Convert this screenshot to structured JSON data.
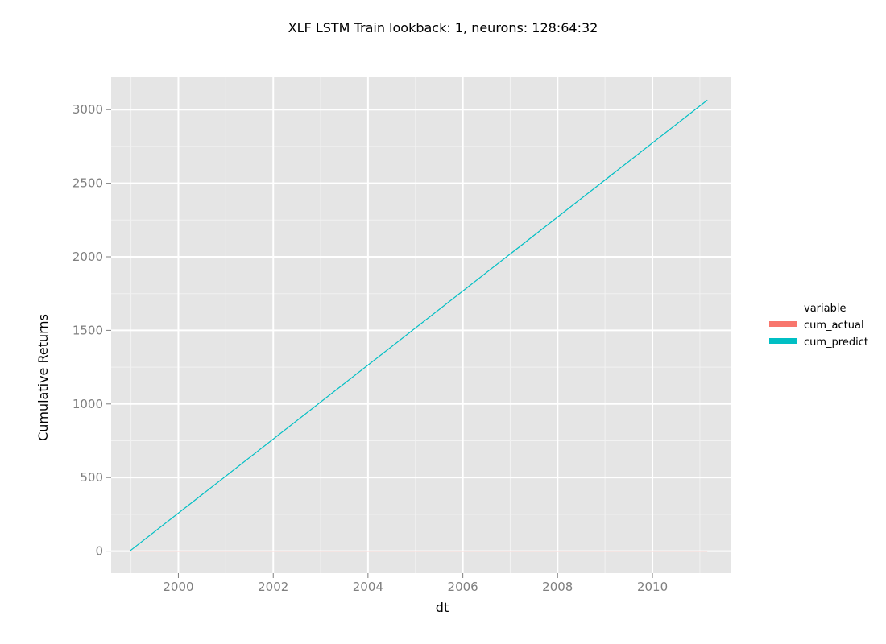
{
  "chart_data": {
    "type": "line",
    "title": "XLF LSTM Train lookback: 1, neurons: 128:64:32",
    "xlabel": "dt",
    "ylabel": "Cumulative Returns",
    "x_type": "date",
    "xlim": [
      "1998-08-01",
      "2011-09-01"
    ],
    "ylim": [
      -150,
      3220
    ],
    "x_ticks": [
      {
        "value": "2000-01-01",
        "label": "2000"
      },
      {
        "value": "2002-01-01",
        "label": "2002"
      },
      {
        "value": "2004-01-01",
        "label": "2004"
      },
      {
        "value": "2006-01-01",
        "label": "2006"
      },
      {
        "value": "2008-01-01",
        "label": "2008"
      },
      {
        "value": "2010-01-01",
        "label": "2010"
      }
    ],
    "y_ticks": [
      0,
      500,
      1000,
      1500,
      2000,
      2500,
      3000
    ],
    "y_tick_labels": [
      "0",
      "500",
      "1000",
      "1500",
      "2000",
      "2500",
      "3000"
    ],
    "grid": true,
    "background": "#e5e5e5",
    "legend": {
      "title": "variable",
      "placement": "right"
    },
    "series": [
      {
        "name": "cum_actual",
        "color": "#f8766d",
        "points": [
          {
            "x": "1998-12-22",
            "y": 0
          },
          {
            "x": "2011-02-28",
            "y": 0
          }
        ]
      },
      {
        "name": "cum_predict",
        "color": "#00bfc4",
        "points": [
          {
            "x": "1998-12-22",
            "y": 0
          },
          {
            "x": "2011-02-28",
            "y": 3065
          }
        ]
      }
    ]
  }
}
